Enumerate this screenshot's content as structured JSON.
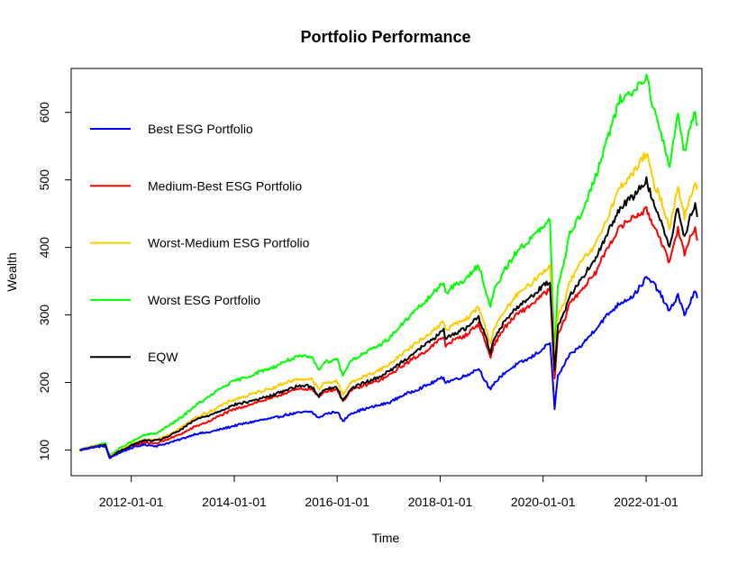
{
  "chart_data": {
    "type": "line",
    "title": "Portfolio Performance",
    "xlabel": "Time",
    "ylabel": "Wealth",
    "xlim": [
      "2010-11-01",
      "2023-02-01"
    ],
    "ylim": [
      62,
      665
    ],
    "x_ticks": [
      "2012-01-01",
      "2014-01-01",
      "2016-01-01",
      "2018-01-01",
      "2020-01-01",
      "2022-01-01"
    ],
    "y_ticks": [
      100,
      200,
      300,
      400,
      500,
      600
    ],
    "grid": false,
    "legend_position": "top-left",
    "x": [
      "2011-01-01",
      "2011-04-01",
      "2011-07-01",
      "2011-08-01",
      "2011-10-01",
      "2012-01-01",
      "2012-04-01",
      "2012-07-01",
      "2012-10-01",
      "2013-01-01",
      "2013-04-01",
      "2013-07-01",
      "2013-10-01",
      "2014-01-01",
      "2014-04-01",
      "2014-07-01",
      "2014-10-01",
      "2015-01-01",
      "2015-04-01",
      "2015-07-01",
      "2015-08-25",
      "2015-10-01",
      "2016-01-01",
      "2016-02-11",
      "2016-04-01",
      "2016-07-01",
      "2016-10-01",
      "2017-01-01",
      "2017-04-01",
      "2017-07-01",
      "2017-10-01",
      "2018-01-26",
      "2018-02-08",
      "2018-04-01",
      "2018-07-01",
      "2018-10-01",
      "2018-12-24",
      "2019-01-15",
      "2019-04-01",
      "2019-07-01",
      "2019-10-01",
      "2020-01-01",
      "2020-02-19",
      "2020-03-23",
      "2020-04-15",
      "2020-06-01",
      "2020-07-01",
      "2020-10-01",
      "2021-01-01",
      "2021-04-01",
      "2021-07-01",
      "2021-10-01",
      "2022-01-03",
      "2022-03-01",
      "2022-04-01",
      "2022-06-16",
      "2022-08-15",
      "2022-09-30",
      "2022-11-01",
      "2022-12-15",
      "2022-12-30"
    ],
    "series": [
      {
        "name": "Best ESG Portfolio",
        "color": "#0000ff",
        "values": [
          100,
          104,
          106,
          88,
          95,
          103,
          108,
          106,
          111,
          117,
          124,
          126,
          131,
          136,
          140,
          144,
          147,
          152,
          155,
          157,
          147,
          153,
          157,
          142,
          154,
          160,
          165,
          170,
          180,
          188,
          196,
          208,
          200,
          204,
          210,
          221,
          188,
          198,
          214,
          227,
          236,
          250,
          260,
          162,
          210,
          225,
          240,
          255,
          278,
          300,
          318,
          328,
          355,
          345,
          335,
          305,
          330,
          300,
          315,
          335,
          325
        ]
      },
      {
        "name": "Medium-Best ESG Portfolio",
        "color": "#ff0000",
        "values": [
          100,
          104,
          107,
          88,
          96,
          105,
          111,
          110,
          117,
          125,
          135,
          142,
          152,
          160,
          166,
          172,
          177,
          185,
          190,
          191,
          178,
          187,
          190,
          172,
          187,
          195,
          201,
          210,
          224,
          236,
          248,
          268,
          255,
          262,
          270,
          287,
          238,
          255,
          281,
          301,
          314,
          330,
          338,
          205,
          270,
          292,
          315,
          338,
          360,
          400,
          430,
          445,
          455,
          430,
          420,
          375,
          430,
          390,
          410,
          430,
          410
        ]
      },
      {
        "name": "Worst-Medium ESG Portfolio",
        "color": "#ffcc00",
        "values": [
          100,
          105,
          108,
          90,
          98,
          108,
          115,
          116,
          124,
          135,
          148,
          156,
          166,
          175,
          180,
          187,
          192,
          200,
          205,
          205,
          190,
          199,
          202,
          182,
          199,
          208,
          216,
          226,
          242,
          256,
          270,
          290,
          277,
          285,
          293,
          312,
          258,
          278,
          305,
          330,
          345,
          365,
          372,
          228,
          300,
          320,
          345,
          380,
          400,
          445,
          490,
          510,
          540,
          490,
          480,
          430,
          490,
          445,
          470,
          495,
          485
        ]
      },
      {
        "name": "Worst ESG Portfolio",
        "color": "#00ff00",
        "values": [
          100,
          106,
          110,
          92,
          101,
          112,
          122,
          125,
          137,
          150,
          166,
          178,
          192,
          202,
          208,
          216,
          222,
          232,
          238,
          238,
          220,
          230,
          235,
          210,
          232,
          242,
          252,
          265,
          285,
          305,
          322,
          350,
          332,
          342,
          352,
          375,
          310,
          335,
          365,
          395,
          412,
          430,
          440,
          235,
          345,
          380,
          420,
          450,
          500,
          560,
          620,
          630,
          655,
          600,
          580,
          520,
          600,
          540,
          575,
          600,
          580
        ]
      },
      {
        "name": "EQW",
        "color": "#000000",
        "values": [
          100,
          104,
          108,
          89,
          97,
          107,
          114,
          114,
          121,
          132,
          145,
          151,
          159,
          167,
          171,
          176,
          181,
          189,
          195,
          195,
          180,
          190,
          193,
          172,
          190,
          199,
          206,
          216,
          230,
          244,
          258,
          277,
          264,
          272,
          280,
          298,
          245,
          265,
          290,
          312,
          326,
          343,
          350,
          218,
          285,
          305,
          325,
          355,
          380,
          420,
          460,
          475,
          500,
          460,
          450,
          400,
          460,
          415,
          440,
          465,
          445
        ]
      }
    ]
  }
}
